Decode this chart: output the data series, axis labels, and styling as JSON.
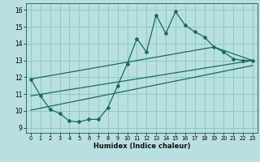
{
  "title": "",
  "xlabel": "Humidex (Indice chaleur)",
  "background_color": "#b8e0e0",
  "grid_color": "#90c8c8",
  "line_color": "#1a6b5a",
  "xlim": [
    -0.5,
    23.5
  ],
  "ylim": [
    8.7,
    16.4
  ],
  "yticks": [
    9,
    10,
    11,
    12,
    13,
    14,
    15,
    16
  ],
  "xticks": [
    0,
    1,
    2,
    3,
    4,
    5,
    6,
    7,
    8,
    9,
    10,
    11,
    12,
    13,
    14,
    15,
    16,
    17,
    18,
    19,
    20,
    21,
    22,
    23
  ],
  "main_line_x": [
    0,
    1,
    2,
    3,
    4,
    5,
    6,
    7,
    8,
    9,
    10,
    11,
    12,
    13,
    14,
    15,
    16,
    17,
    18,
    19,
    20,
    21,
    22,
    23
  ],
  "main_line_y": [
    11.9,
    10.9,
    10.1,
    9.85,
    9.4,
    9.35,
    9.5,
    9.5,
    10.2,
    11.5,
    12.8,
    14.3,
    13.5,
    15.7,
    14.6,
    15.9,
    15.1,
    14.7,
    14.4,
    13.8,
    13.5,
    13.1,
    13.0,
    13.0
  ],
  "upper_line_x": [
    0,
    19,
    23
  ],
  "upper_line_y": [
    11.9,
    13.8,
    13.0
  ],
  "lower_line_x": [
    0,
    23
  ],
  "lower_line_y": [
    10.9,
    13.0
  ],
  "mid_line_x": [
    0,
    23
  ],
  "mid_line_y": [
    10.05,
    12.7
  ]
}
